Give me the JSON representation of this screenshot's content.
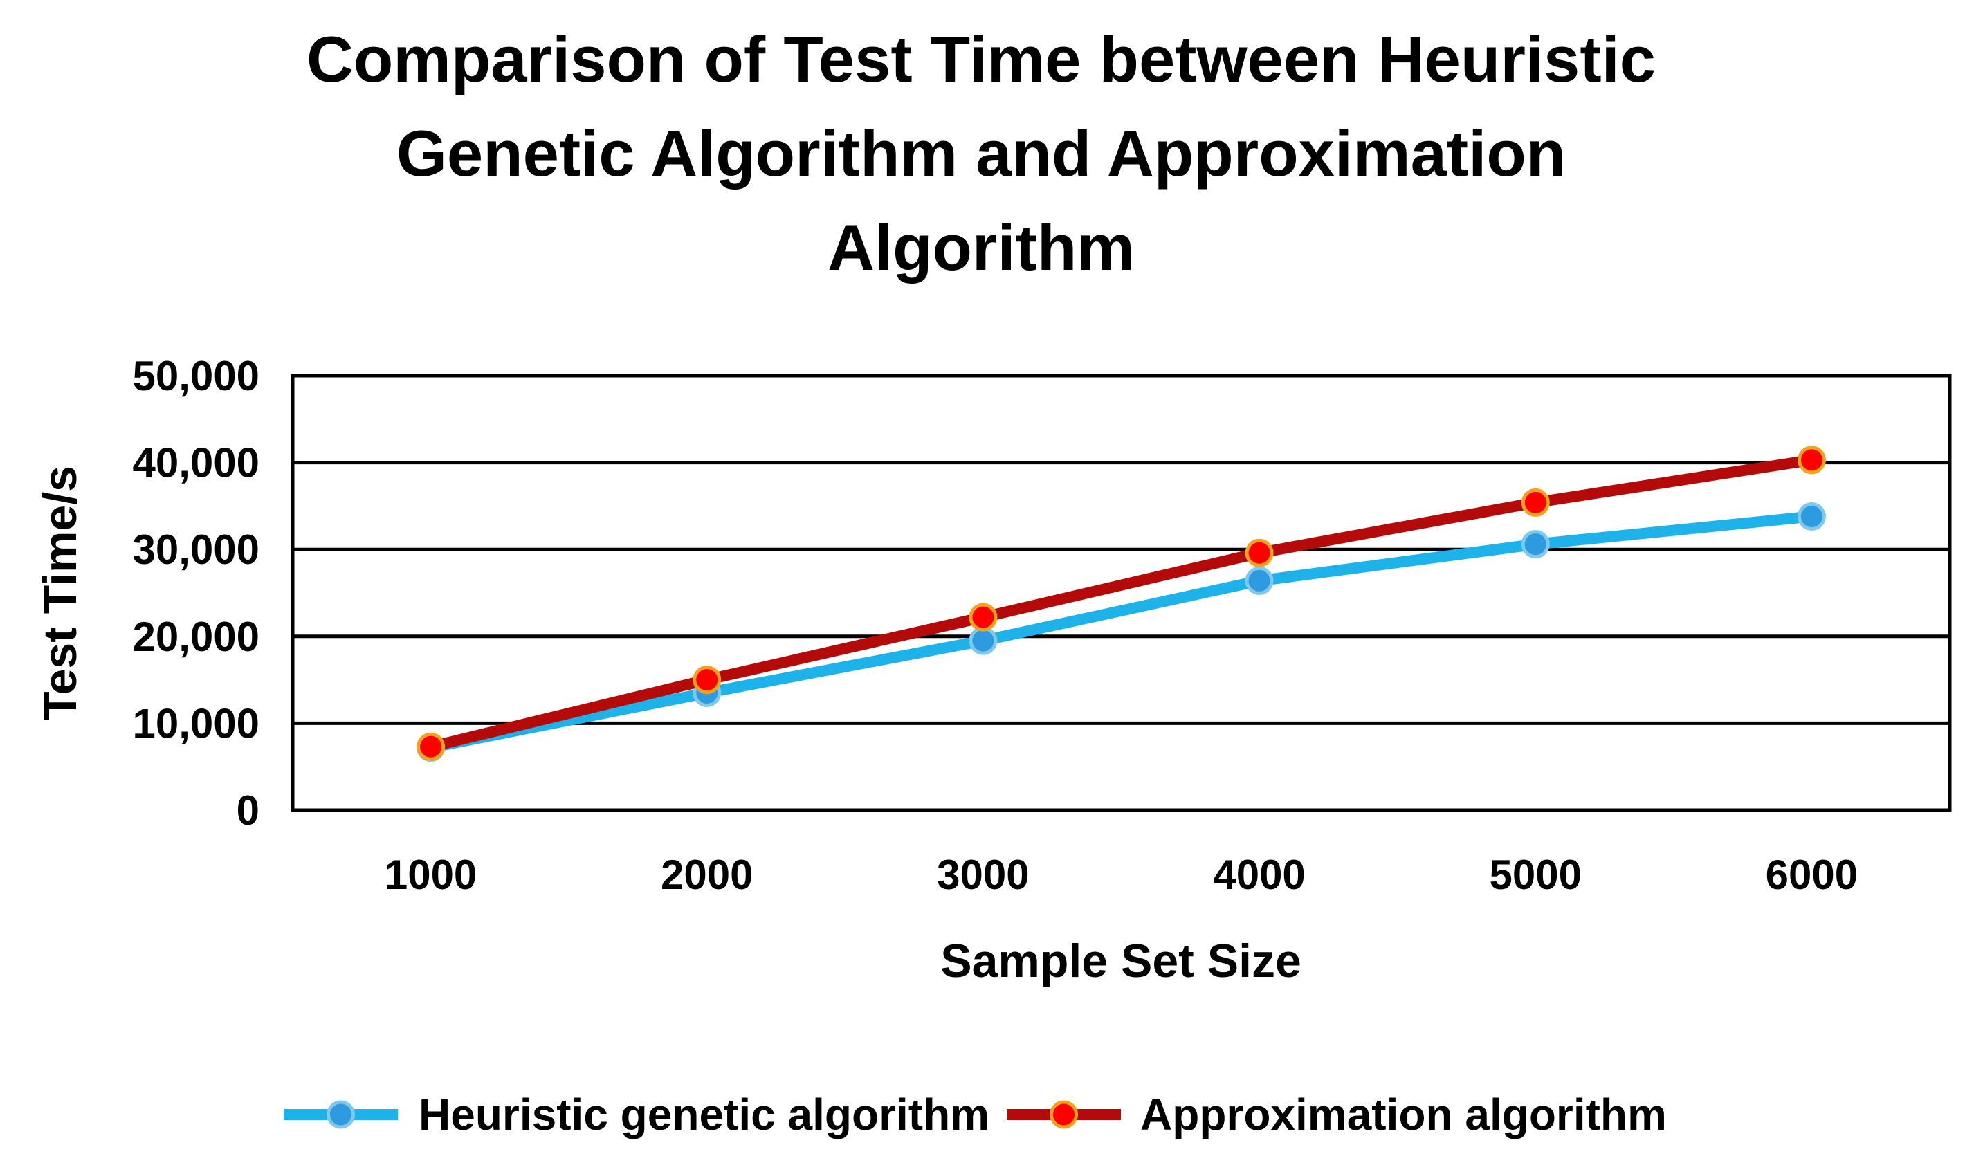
{
  "chart_data": {
    "type": "line",
    "title_lines": [
      "Comparison of Test Time between Heuristic",
      "Genetic Algorithm and Approximation",
      "Algorithm"
    ],
    "xlabel": "Sample Set Size",
    "ylabel": "Test Time/s",
    "categories": [
      "1000",
      "2000",
      "3000",
      "4000",
      "5000",
      "6000"
    ],
    "y_ticks": [
      "0",
      "10,000",
      "20,000",
      "30,000",
      "40,000",
      "50,000"
    ],
    "ylim": [
      0,
      50000
    ],
    "grid": true,
    "legend_position": "bottom",
    "series": [
      {
        "name": "Heuristic genetic algorithm",
        "color": "#1EB2EA",
        "marker_color": "#2E9BE0",
        "marker_edge": "#7FC8EE",
        "values": [
          7200,
          13500,
          19500,
          26400,
          30600,
          33800
        ]
      },
      {
        "name": "Approximation algorithm",
        "color": "#B50A0A",
        "marker_color": "#FF0000",
        "marker_edge": "#F2A31B",
        "values": [
          7300,
          15000,
          22200,
          29600,
          35400,
          40300
        ]
      }
    ]
  }
}
